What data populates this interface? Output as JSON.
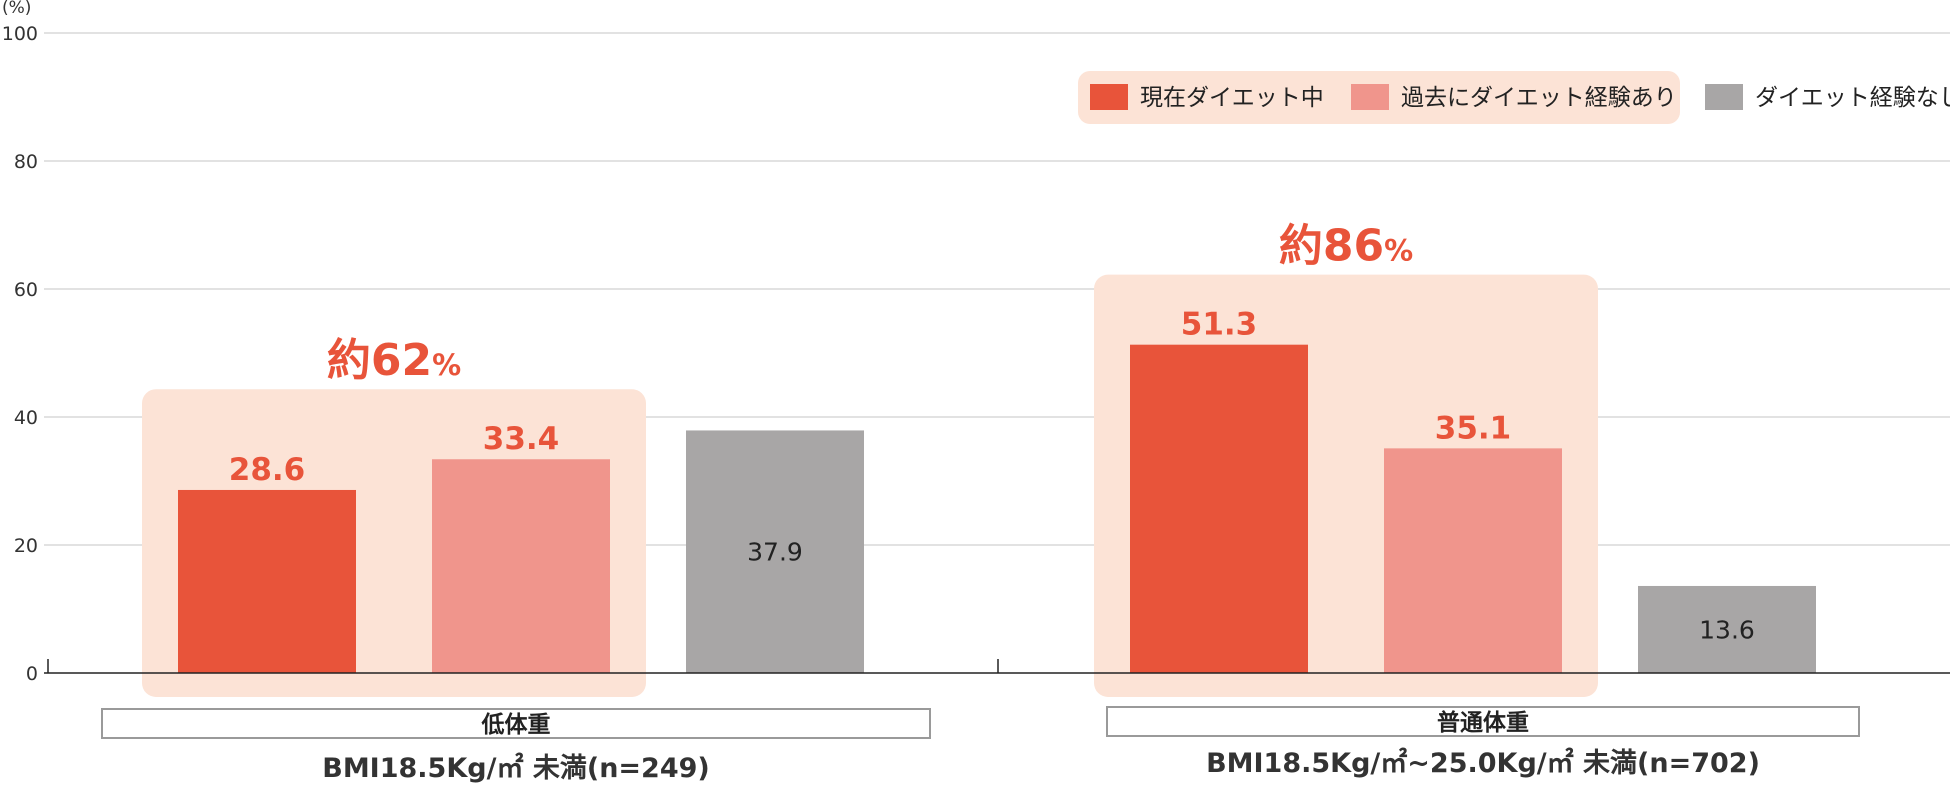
{
  "chart_data": {
    "type": "bar",
    "y_unit": "(%)",
    "ylim": [
      0,
      100
    ],
    "yticks": [
      0,
      20,
      40,
      60,
      80,
      100
    ],
    "grid": true,
    "legend_position": "top-right",
    "series": [
      {
        "name": "現在ダイエット中",
        "color": "#E8543A",
        "values": [
          28.6,
          51.3
        ]
      },
      {
        "name": "過去にダイエット経験あり",
        "color": "#F0958C",
        "values": [
          33.4,
          35.1
        ]
      },
      {
        "name": "ダイエット経験なし",
        "color": "#A8A6A6",
        "values": [
          37.9,
          13.6
        ]
      }
    ],
    "groups": [
      {
        "name": "低体重",
        "sub": "BMI18.5Kg/㎡ 未満(n=249)",
        "total_label": "約62",
        "total_suffix": "%"
      },
      {
        "name": "普通体重",
        "sub": "BMI18.5Kg/㎡~25.0Kg/㎡ 未満(n=702)",
        "total_label": "約86",
        "total_suffix": "%"
      }
    ]
  },
  "colors": {
    "highlight_bg": "#FCE3D6",
    "accent": "#E8543A",
    "inside_label": "#222222"
  }
}
